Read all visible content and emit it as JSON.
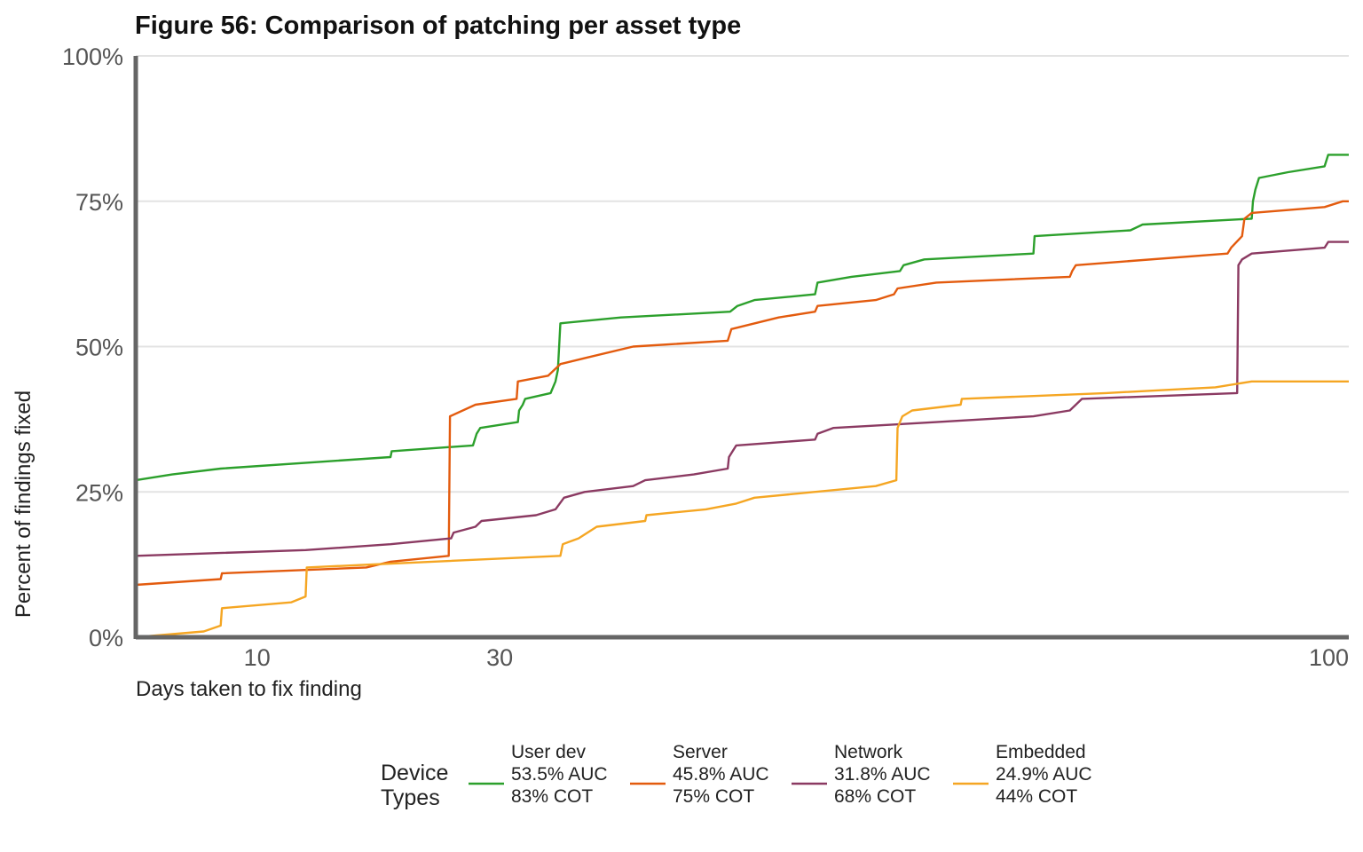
{
  "chart_data": {
    "type": "line",
    "title": "Figure 56: Comparison of patching per asset type",
    "xlabel": "Days taken to fix finding",
    "ylabel": "Percent of findings fixed",
    "xlim": [
      0,
      100
    ],
    "ylim": [
      0,
      100
    ],
    "x_ticks": [
      10,
      30,
      100
    ],
    "x_tick_labels": [
      "10",
      "30",
      "100"
    ],
    "y_ticks": [
      0,
      25,
      50,
      75,
      100
    ],
    "y_tick_labels": [
      "0%",
      "25%",
      "50%",
      "75%",
      "100%"
    ],
    "grid": "horizontal",
    "legend": {
      "title": "Device Types",
      "title_lines": [
        "Device",
        "Types"
      ],
      "position": "bottom"
    },
    "series": [
      {
        "name": "User dev",
        "auc": "53.5% AUC",
        "cot": "83% COT",
        "color": "#2ca02c",
        "points": [
          [
            0,
            27
          ],
          [
            3,
            28
          ],
          [
            7,
            29
          ],
          [
            21,
            31
          ],
          [
            21.1,
            32
          ],
          [
            27.8,
            33
          ],
          [
            28.1,
            35
          ],
          [
            28.4,
            36
          ],
          [
            31.5,
            37
          ],
          [
            31.6,
            39
          ],
          [
            31.9,
            40
          ],
          [
            32.1,
            41
          ],
          [
            34.2,
            42
          ],
          [
            34.6,
            44
          ],
          [
            34.8,
            46
          ],
          [
            35,
            54
          ],
          [
            40,
            55
          ],
          [
            49,
            56
          ],
          [
            49.6,
            57
          ],
          [
            51,
            58
          ],
          [
            56,
            59
          ],
          [
            56.2,
            61
          ],
          [
            59,
            62
          ],
          [
            63,
            63
          ],
          [
            63.3,
            64
          ],
          [
            65,
            65
          ],
          [
            74,
            66
          ],
          [
            74.1,
            69
          ],
          [
            82,
            70
          ],
          [
            83,
            71
          ],
          [
            92,
            72
          ],
          [
            92.1,
            75
          ],
          [
            92.3,
            77
          ],
          [
            92.6,
            79
          ],
          [
            95,
            80
          ],
          [
            98,
            81
          ],
          [
            98.3,
            83
          ],
          [
            100,
            83
          ]
        ]
      },
      {
        "name": "Server",
        "auc": "45.8% AUC",
        "cot": "75% COT",
        "color": "#e35b0e",
        "points": [
          [
            0,
            9
          ],
          [
            7,
            10
          ],
          [
            7.1,
            11
          ],
          [
            19,
            12
          ],
          [
            21,
            13
          ],
          [
            25.8,
            14
          ],
          [
            25.9,
            38
          ],
          [
            28,
            40
          ],
          [
            31.4,
            41
          ],
          [
            31.5,
            44
          ],
          [
            34,
            45
          ],
          [
            35,
            47
          ],
          [
            37,
            48
          ],
          [
            41,
            50
          ],
          [
            48.8,
            51
          ],
          [
            49.1,
            53
          ],
          [
            53,
            55
          ],
          [
            56,
            56
          ],
          [
            56.2,
            57
          ],
          [
            61,
            58
          ],
          [
            62.5,
            59
          ],
          [
            62.8,
            60
          ],
          [
            66,
            61
          ],
          [
            77,
            62
          ],
          [
            77.2,
            63
          ],
          [
            77.5,
            64
          ],
          [
            90,
            66
          ],
          [
            90.3,
            67
          ],
          [
            91.2,
            69
          ],
          [
            91.4,
            72
          ],
          [
            92,
            73
          ],
          [
            98,
            74
          ],
          [
            99.5,
            75
          ],
          [
            100,
            75
          ]
        ]
      },
      {
        "name": "Network",
        "auc": "31.8% AUC",
        "cot": "68% COT",
        "color": "#8b3a62",
        "points": [
          [
            0,
            14
          ],
          [
            14,
            15
          ],
          [
            21,
            16
          ],
          [
            26,
            17
          ],
          [
            26.2,
            18
          ],
          [
            28,
            19
          ],
          [
            28.5,
            20
          ],
          [
            33,
            21
          ],
          [
            34.6,
            22
          ],
          [
            35.3,
            24
          ],
          [
            37,
            25
          ],
          [
            41,
            26
          ],
          [
            42,
            27
          ],
          [
            46,
            28
          ],
          [
            48.8,
            29
          ],
          [
            48.9,
            31
          ],
          [
            49.2,
            32
          ],
          [
            49.5,
            33
          ],
          [
            56,
            34
          ],
          [
            56.2,
            35
          ],
          [
            57.5,
            36
          ],
          [
            66,
            37
          ],
          [
            74,
            38
          ],
          [
            77,
            39
          ],
          [
            77.5,
            40
          ],
          [
            78,
            41
          ],
          [
            90.8,
            42
          ],
          [
            90.9,
            64
          ],
          [
            91.2,
            65
          ],
          [
            92,
            66
          ],
          [
            98,
            67
          ],
          [
            98.3,
            68
          ],
          [
            100,
            68
          ]
        ]
      },
      {
        "name": "Embedded",
        "auc": "24.9% AUC",
        "cot": "44% COT",
        "color": "#f5a623",
        "points": [
          [
            0,
            0
          ],
          [
            5.6,
            1
          ],
          [
            7,
            2
          ],
          [
            7.1,
            5
          ],
          [
            12.8,
            6
          ],
          [
            14,
            7
          ],
          [
            14.1,
            12
          ],
          [
            35,
            14
          ],
          [
            35.2,
            16
          ],
          [
            36.5,
            17
          ],
          [
            38,
            19
          ],
          [
            42,
            20
          ],
          [
            42.1,
            21
          ],
          [
            47,
            22
          ],
          [
            49.5,
            23
          ],
          [
            51,
            24
          ],
          [
            61,
            26
          ],
          [
            62.7,
            27
          ],
          [
            62.8,
            36
          ],
          [
            63,
            37
          ],
          [
            63.2,
            38
          ],
          [
            64,
            39
          ],
          [
            68,
            40
          ],
          [
            68.1,
            41
          ],
          [
            80,
            42
          ],
          [
            89,
            43
          ],
          [
            92,
            44
          ],
          [
            100,
            44
          ]
        ]
      }
    ]
  }
}
